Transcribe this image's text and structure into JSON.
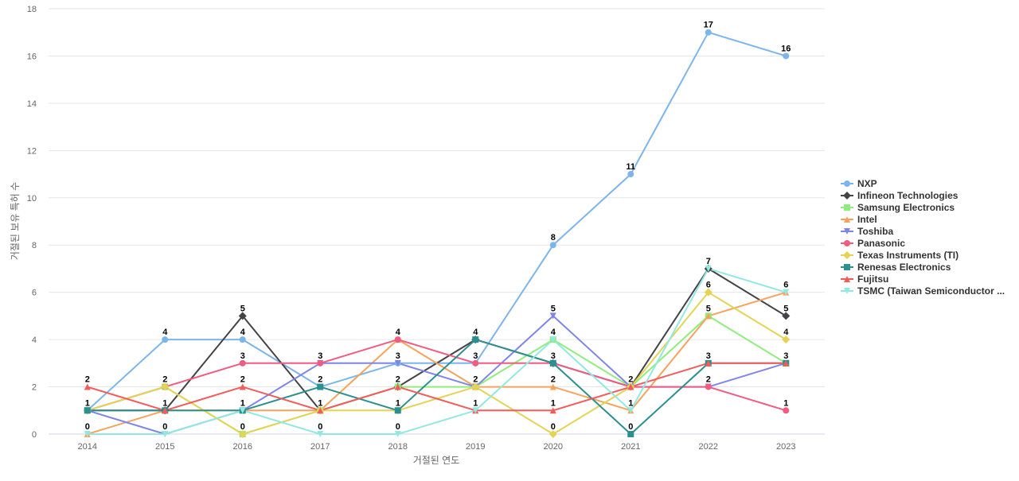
{
  "chart_data": {
    "type": "line",
    "title": "",
    "xlabel": "거절된 연도",
    "ylabel": "거절된 보유 특허 수",
    "ylim": [
      0,
      18
    ],
    "yticks": [
      0,
      2,
      4,
      6,
      8,
      10,
      12,
      14,
      16,
      18
    ],
    "grid": true,
    "legend_position": "right",
    "x": [
      "2014",
      "2015",
      "2016",
      "2017",
      "2018",
      "2019",
      "2020",
      "2021",
      "2022",
      "2023"
    ],
    "series": [
      {
        "name": "NXP",
        "color": "#7cb5ec",
        "marker": "circle",
        "values": [
          1,
          4,
          4,
          2,
          3,
          3,
          8,
          11,
          17,
          16
        ]
      },
      {
        "name": "Infineon Technologies",
        "color": "#434348",
        "marker": "diamond",
        "values": [
          1,
          1,
          5,
          1,
          2,
          4,
          3,
          2,
          7,
          5
        ]
      },
      {
        "name": "Samsung Electronics",
        "color": "#90ed7d",
        "marker": "square",
        "values": [
          1,
          2,
          0,
          1,
          2,
          2,
          4,
          2,
          5,
          3
        ]
      },
      {
        "name": "Intel",
        "color": "#f7a35c",
        "marker": "triangle",
        "values": [
          0,
          1,
          1,
          1,
          4,
          2,
          2,
          1,
          5,
          6
        ]
      },
      {
        "name": "Toshiba",
        "color": "#8085e9",
        "marker": "triangle-down",
        "values": [
          1,
          0,
          1,
          3,
          3,
          2,
          5,
          2,
          2,
          3
        ]
      },
      {
        "name": "Panasonic",
        "color": "#f15c80",
        "marker": "circle",
        "values": [
          1,
          2,
          3,
          3,
          4,
          3,
          3,
          2,
          2,
          1
        ]
      },
      {
        "name": "Texas Instruments (TI)",
        "color": "#e4d354",
        "marker": "diamond",
        "values": [
          1,
          2,
          0,
          1,
          1,
          2,
          0,
          2,
          6,
          4
        ]
      },
      {
        "name": "Renesas Electronics",
        "color": "#2b908f",
        "marker": "square",
        "values": [
          1,
          1,
          1,
          2,
          1,
          4,
          3,
          0,
          3,
          3
        ]
      },
      {
        "name": "Fujitsu",
        "color": "#f45b5b",
        "marker": "triangle",
        "values": [
          2,
          1,
          2,
          1,
          2,
          1,
          1,
          2,
          3,
          3
        ]
      },
      {
        "name": "TSMC (Taiwan Semiconductor ...",
        "color": "#91e8e1",
        "marker": "triangle-down",
        "values": [
          0,
          0,
          1,
          0,
          0,
          1,
          4,
          1,
          7,
          6
        ]
      }
    ],
    "data_labels": [
      {
        "x": "2014",
        "text": "2",
        "value": 2
      },
      {
        "x": "2014",
        "text": "1",
        "value": 1
      },
      {
        "x": "2014",
        "text": "0",
        "value": 0
      },
      {
        "x": "2015",
        "text": "4",
        "value": 4
      },
      {
        "x": "2015",
        "text": "2",
        "value": 2
      },
      {
        "x": "2015",
        "text": "1",
        "value": 1
      },
      {
        "x": "2015",
        "text": "0",
        "value": 0
      },
      {
        "x": "2016",
        "text": "5",
        "value": 5
      },
      {
        "x": "2016",
        "text": "4",
        "value": 4
      },
      {
        "x": "2016",
        "text": "3",
        "value": 3
      },
      {
        "x": "2016",
        "text": "2",
        "value": 2
      },
      {
        "x": "2016",
        "text": "1",
        "value": 1
      },
      {
        "x": "2016",
        "text": "0",
        "value": 0
      },
      {
        "x": "2017",
        "text": "3",
        "value": 3
      },
      {
        "x": "2017",
        "text": "2",
        "value": 2
      },
      {
        "x": "2017",
        "text": "1",
        "value": 1
      },
      {
        "x": "2017",
        "text": "0",
        "value": 0
      },
      {
        "x": "2018",
        "text": "4",
        "value": 4
      },
      {
        "x": "2018",
        "text": "3",
        "value": 3
      },
      {
        "x": "2018",
        "text": "2",
        "value": 2
      },
      {
        "x": "2018",
        "text": "1",
        "value": 1
      },
      {
        "x": "2018",
        "text": "0",
        "value": 0
      },
      {
        "x": "2019",
        "text": "4",
        "value": 4
      },
      {
        "x": "2019",
        "text": "3",
        "value": 3
      },
      {
        "x": "2019",
        "text": "2",
        "value": 2
      },
      {
        "x": "2019",
        "text": "1",
        "value": 1
      },
      {
        "x": "2020",
        "text": "8",
        "value": 8
      },
      {
        "x": "2020",
        "text": "5",
        "value": 5
      },
      {
        "x": "2020",
        "text": "4",
        "value": 4
      },
      {
        "x": "2020",
        "text": "3",
        "value": 3
      },
      {
        "x": "2020",
        "text": "2",
        "value": 2
      },
      {
        "x": "2020",
        "text": "1",
        "value": 1
      },
      {
        "x": "2020",
        "text": "0",
        "value": 0
      },
      {
        "x": "2021",
        "text": "11",
        "value": 11
      },
      {
        "x": "2021",
        "text": "2",
        "value": 2
      },
      {
        "x": "2021",
        "text": "1",
        "value": 1
      },
      {
        "x": "2021",
        "text": "0",
        "value": 0
      },
      {
        "x": "2022",
        "text": "17",
        "value": 17
      },
      {
        "x": "2022",
        "text": "7",
        "value": 7
      },
      {
        "x": "2022",
        "text": "6",
        "value": 6
      },
      {
        "x": "2022",
        "text": "5",
        "value": 5
      },
      {
        "x": "2022",
        "text": "3",
        "value": 3
      },
      {
        "x": "2022",
        "text": "2",
        "value": 2
      },
      {
        "x": "2023",
        "text": "16",
        "value": 16
      },
      {
        "x": "2023",
        "text": "6",
        "value": 6
      },
      {
        "x": "2023",
        "text": "5",
        "value": 5
      },
      {
        "x": "2023",
        "text": "4",
        "value": 4
      },
      {
        "x": "2023",
        "text": "3",
        "value": 3
      },
      {
        "x": "2023",
        "text": "1",
        "value": 1
      }
    ]
  }
}
